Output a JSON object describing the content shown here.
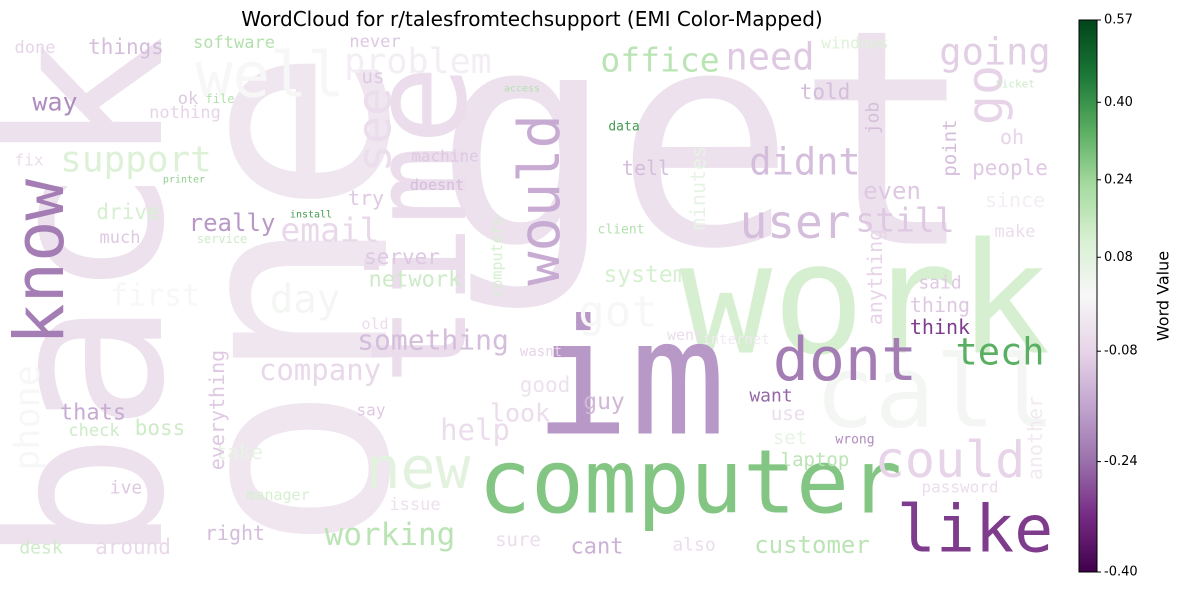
{
  "chart_data": {
    "type": "wordcloud",
    "title": "WordCloud for r/talesfromtechsupport (EMI Color-Mapped)",
    "colorbar_label": "Word Value",
    "colormap": "PRGn",
    "vcenter": 0,
    "ylim": [
      -0.4,
      0.57
    ],
    "yticks": [
      0.57,
      {
        "value": 0.4,
        "label": "0.40"
      },
      0.24,
      0.08,
      -0.08,
      -0.24,
      {
        "value": -0.4,
        "label": "-0.40"
      }
    ],
    "words": [
      "one",
      "back",
      "get",
      "time",
      "work",
      "im",
      "call",
      "computer",
      "well",
      "know",
      "would",
      "dont",
      "like",
      "new",
      "could",
      "user",
      "see",
      "go",
      "got",
      "day",
      "going",
      "office",
      "need",
      "problem",
      "support",
      "tech",
      "didnt",
      "still",
      "email",
      "first",
      "company",
      "working",
      "something",
      "phone",
      "server",
      "network",
      "system",
      "thats",
      "help",
      "good",
      "guy",
      "look",
      "want",
      "use",
      "set",
      "laptop",
      "customer",
      "cant",
      "also",
      "sure",
      "right",
      "around",
      "desk",
      "manager",
      "issue",
      "password",
      "ive",
      "take",
      "boss",
      "check",
      "everything",
      "really",
      "drive",
      "way",
      "things",
      "software",
      "fix",
      "try",
      "people",
      "make",
      "since",
      "even",
      "tell",
      "told",
      "us",
      "ok",
      "nothing",
      "oh",
      "job",
      "point",
      "said",
      "thing",
      "think",
      "anything",
      "another",
      "windows",
      "never",
      "machine",
      "doesnt",
      "minutes",
      "computers",
      "old",
      "internet",
      "data",
      "client",
      "install",
      "printer",
      "wrong",
      "wasnt",
      "went",
      "done",
      "file",
      "access",
      "service",
      "say",
      "much",
      "ticket"
    ],
    "values": [
      -0.04,
      -0.05,
      -0.05,
      -0.06,
      0.12,
      -0.18,
      0.01,
      0.28,
      0.0,
      -0.22,
      -0.15,
      -0.22,
      -0.3,
      0.08,
      -0.08,
      -0.12,
      -0.06,
      -0.08,
      0.0,
      0.01,
      -0.09,
      0.18,
      -0.1,
      -0.02,
      0.1,
      0.34,
      -0.12,
      -0.1,
      -0.07,
      0.0,
      -0.07,
      0.18,
      -0.12,
      0.0,
      -0.1,
      0.14,
      0.12,
      -0.15,
      -0.06,
      -0.05,
      -0.13,
      -0.06,
      -0.25,
      -0.06,
      0.06,
      0.18,
      0.18,
      -0.14,
      -0.06,
      -0.06,
      -0.12,
      -0.07,
      0.14,
      0.12,
      -0.05,
      -0.06,
      -0.1,
      0.06,
      0.14,
      0.14,
      -0.1,
      -0.18,
      0.12,
      -0.2,
      -0.12,
      0.2,
      -0.06,
      -0.1,
      -0.1,
      -0.06,
      -0.02,
      -0.1,
      -0.12,
      -0.12,
      -0.1,
      -0.1,
      -0.08,
      -0.08,
      -0.12,
      -0.12,
      -0.1,
      -0.1,
      -0.3,
      -0.08,
      -0.03,
      0.1,
      -0.1,
      -0.1,
      -0.12,
      0.06,
      0.12,
      -0.06,
      -0.03,
      0.38,
      0.2,
      0.38,
      0.26,
      -0.2,
      -0.08,
      -0.06,
      -0.08,
      0.2,
      0.2,
      0.14,
      -0.1,
      -0.1,
      0.14
    ]
  }
}
